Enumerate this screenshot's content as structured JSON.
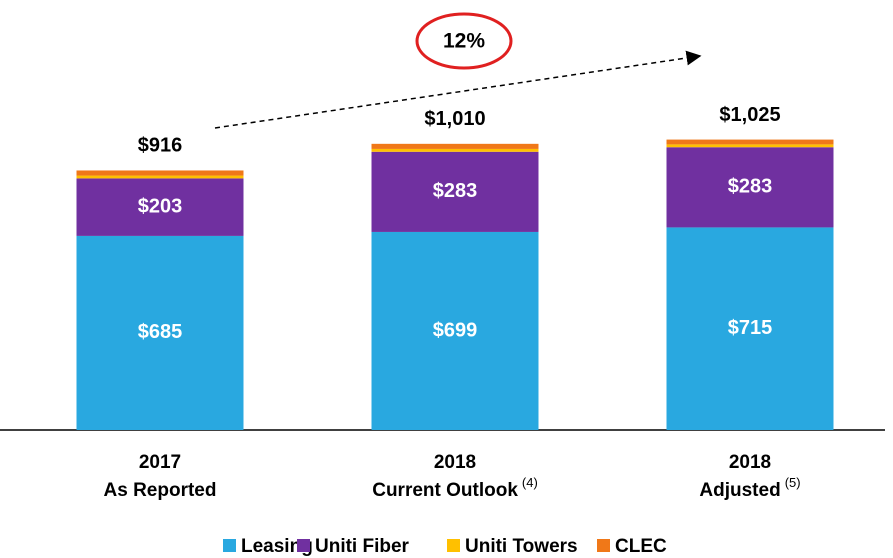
{
  "chart_data": {
    "type": "stacked_bar",
    "categories": [
      [
        "2017",
        "As Reported"
      ],
      [
        "2018",
        "Current Outlook"
      ],
      [
        "2018",
        "Adjusted"
      ]
    ],
    "category_notes": [
      null,
      "(4)",
      "(5)"
    ],
    "series": [
      {
        "name": "Leasing",
        "color": "#29a8e0",
        "values": [
          685,
          699,
          715
        ],
        "value_labels": [
          "$685",
          "$699",
          "$715"
        ]
      },
      {
        "name": "Uniti Fiber",
        "color": "#7030a0",
        "values": [
          203,
          283,
          283
        ],
        "value_labels": [
          "$203",
          "$283",
          "$283"
        ]
      },
      {
        "name": "Uniti Towers",
        "color": "#ffc000",
        "values": [
          10,
          10,
          10
        ]
      },
      {
        "name": "CLEC",
        "color": "#f07818",
        "values": [
          18,
          18,
          17
        ]
      }
    ],
    "totals": [
      916,
      1010,
      1025
    ],
    "total_labels": [
      "$916",
      "$1,010",
      "$1,025"
    ],
    "annotation": "12%",
    "ylim": [
      0,
      1200
    ]
  }
}
